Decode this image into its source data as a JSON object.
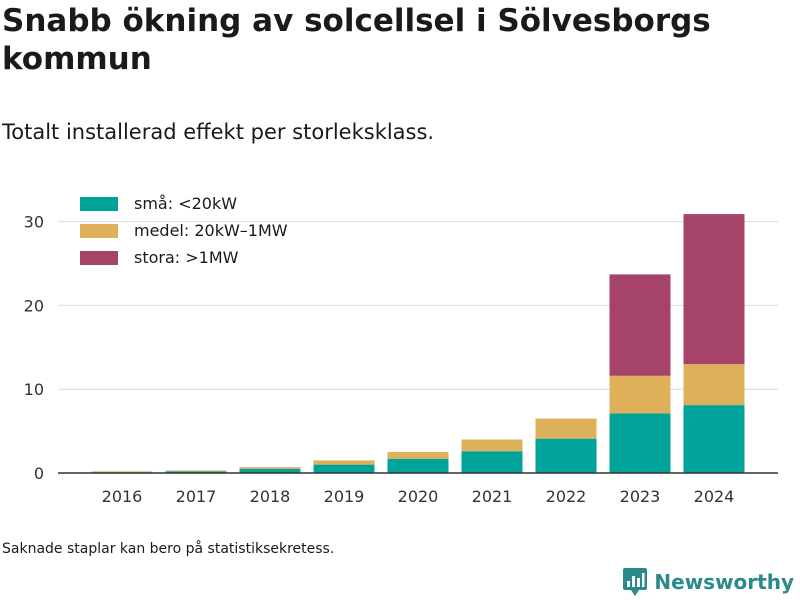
{
  "title": "Snabb ökning av solcellsel i Sölvesborgs kommun",
  "subtitle": "Totalt installerad effekt per storleksklass.",
  "footnote": "Saknade staplar kan bero på statistiksekretess.",
  "brand": {
    "name": "Newsworthy",
    "icon": "newsworthy-logo-icon",
    "color": "#2a8a8a"
  },
  "chart_data": {
    "type": "bar",
    "stacked": true,
    "categories": [
      "2016",
      "2017",
      "2018",
      "2019",
      "2020",
      "2021",
      "2022",
      "2023",
      "2024"
    ],
    "series": [
      {
        "name": "små: <20kW",
        "color": "#00a39a",
        "values": [
          0.1,
          0.2,
          0.5,
          1.0,
          1.7,
          2.6,
          4.1,
          7.1,
          8.1
        ]
      },
      {
        "name": "medel: 20kW–1MW",
        "color": "#dfb05a",
        "values": [
          0.1,
          0.1,
          0.2,
          0.5,
          0.8,
          1.4,
          2.4,
          4.5,
          4.9
        ]
      },
      {
        "name": "stora: >1MW",
        "color": "#a54369",
        "values": [
          0,
          0,
          0,
          0,
          0,
          0,
          0,
          12.1,
          17.9
        ]
      }
    ],
    "yticks": [
      0,
      10,
      20,
      30
    ],
    "ylim": [
      0,
      32
    ],
    "xlabel": "",
    "ylabel": "",
    "grid": true,
    "legend": "top-left"
  }
}
